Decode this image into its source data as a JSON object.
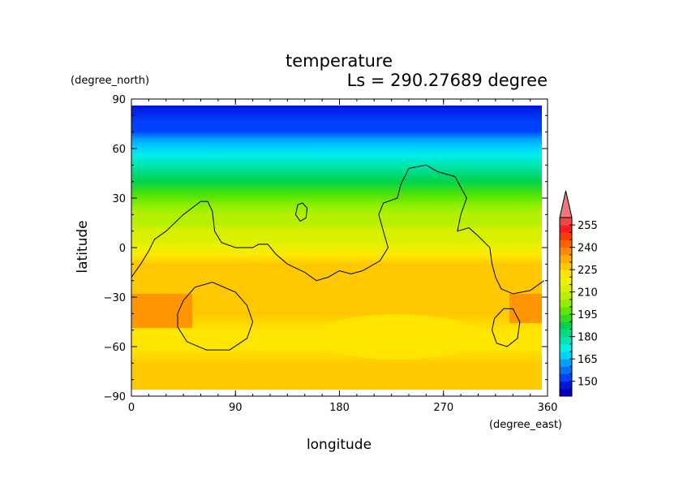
{
  "chart_data": {
    "type": "heatmap",
    "title": "temperature",
    "subtitle": "Ls = 290.27689 degree",
    "xlabel": "longitude",
    "ylabel": "latitude",
    "x_unit": "(degree_east)",
    "y_unit": "(degree_north)",
    "xlim": [
      0,
      360
    ],
    "ylim": [
      -90,
      90
    ],
    "x_ticks": [
      "0",
      "90",
      "180",
      "270",
      "360"
    ],
    "x_tick_values": [
      0,
      90,
      180,
      270,
      360
    ],
    "y_ticks": [
      "90",
      "60",
      "30",
      "0",
      "−30",
      "−60",
      "−90"
    ],
    "y_tick_values": [
      90,
      60,
      30,
      0,
      -30,
      -60,
      -90
    ],
    "data_lat_range": [
      -85,
      85
    ],
    "colorbar": {
      "levels": [
        140,
        145,
        150,
        155,
        160,
        165,
        170,
        175,
        180,
        185,
        190,
        195,
        200,
        205,
        210,
        215,
        220,
        225,
        230,
        235,
        240,
        245,
        250,
        255,
        260
      ],
      "colors": [
        "#0000b4",
        "#0014dc",
        "#0040ff",
        "#0070ff",
        "#00a0ff",
        "#00d0ff",
        "#00f0e6",
        "#00e6b4",
        "#00dc82",
        "#00d250",
        "#30dc20",
        "#60e600",
        "#90ee00",
        "#b4f000",
        "#d8f000",
        "#f0f000",
        "#ffe600",
        "#ffc800",
        "#ffaa00",
        "#ff8c00",
        "#ff6400",
        "#ff3c00",
        "#ff1e1e",
        "#f04646"
      ],
      "overflow_color": "#f07878",
      "tick_labels": [
        "255",
        "240",
        "225",
        "210",
        "195",
        "180",
        "165",
        "150"
      ],
      "tick_values": [
        255,
        240,
        225,
        210,
        195,
        180,
        165,
        150
      ]
    },
    "zonal_temperature_profile": {
      "lat": [
        85,
        75,
        70,
        65,
        60,
        55,
        50,
        45,
        40,
        35,
        30,
        25,
        20,
        15,
        10,
        5,
        0,
        -5,
        -10,
        -15,
        -20,
        -30,
        -40,
        -50,
        -60,
        -70,
        -80,
        -85
      ],
      "temp": [
        145,
        150,
        154,
        160,
        166,
        172,
        178,
        183,
        188,
        192,
        196,
        201,
        205,
        208,
        211,
        214,
        218,
        222,
        225,
        226,
        227,
        229,
        227,
        224,
        222,
        225,
        229,
        229
      ]
    },
    "contours": [
      {
        "name": "continent-outline",
        "points": [
          [
            0,
            -18
          ],
          [
            8,
            -10
          ],
          [
            15,
            -2
          ],
          [
            20,
            5
          ],
          [
            30,
            10
          ],
          [
            45,
            20
          ],
          [
            60,
            28
          ],
          [
            66,
            28
          ],
          [
            70,
            22
          ],
          [
            72,
            10
          ],
          [
            78,
            3
          ],
          [
            90,
            0
          ],
          [
            105,
            0
          ],
          [
            110,
            2
          ],
          [
            118,
            2
          ],
          [
            125,
            -4
          ],
          [
            135,
            -10
          ],
          [
            150,
            -15
          ],
          [
            160,
            -20
          ],
          [
            170,
            -18
          ],
          [
            180,
            -14
          ],
          [
            190,
            -16
          ],
          [
            200,
            -14
          ],
          [
            215,
            -8
          ],
          [
            222,
            0
          ],
          [
            218,
            10
          ],
          [
            214,
            20
          ],
          [
            218,
            27
          ],
          [
            230,
            30
          ],
          [
            233,
            38
          ],
          [
            240,
            48
          ],
          [
            255,
            50
          ],
          [
            265,
            46
          ],
          [
            280,
            43
          ],
          [
            290,
            30
          ],
          [
            285,
            20
          ],
          [
            282,
            10
          ],
          [
            292,
            12
          ],
          [
            300,
            7
          ],
          [
            310,
            0
          ],
          [
            312,
            -10
          ],
          [
            315,
            -18
          ],
          [
            320,
            -25
          ],
          [
            330,
            -28
          ],
          [
            345,
            -26
          ],
          [
            357,
            -20
          ]
        ]
      },
      {
        "name": "small-island",
        "points": [
          [
            142,
            20
          ],
          [
            144,
            26
          ],
          [
            148,
            27
          ],
          [
            152,
            24
          ],
          [
            151,
            18
          ],
          [
            146,
            16
          ],
          [
            142,
            20
          ]
        ]
      },
      {
        "name": "southern-basin",
        "points": [
          [
            40,
            -40
          ],
          [
            45,
            -32
          ],
          [
            55,
            -24
          ],
          [
            70,
            -21
          ],
          [
            90,
            -27
          ],
          [
            100,
            -35
          ],
          [
            105,
            -45
          ],
          [
            100,
            -55
          ],
          [
            85,
            -62
          ],
          [
            65,
            -62
          ],
          [
            48,
            -57
          ],
          [
            40,
            -48
          ],
          [
            40,
            -40
          ]
        ]
      },
      {
        "name": "southeastern-basin",
        "points": [
          [
            312,
            -50
          ],
          [
            314,
            -43
          ],
          [
            322,
            -37
          ],
          [
            330,
            -37
          ],
          [
            336,
            -45
          ],
          [
            334,
            -55
          ],
          [
            325,
            -60
          ],
          [
            316,
            -58
          ],
          [
            312,
            -50
          ]
        ]
      }
    ]
  }
}
